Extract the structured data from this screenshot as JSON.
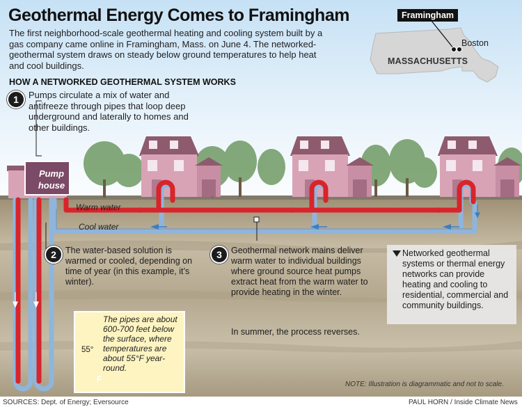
{
  "title": "Geothermal Energy Comes to Framingham",
  "intro": "The first neighborhood-scale geothermal heating and cooling system built by a gas company came online in Framingham, Mass. on June 4. The networked-geothermal system draws on steady below ground temperatures to help heat and cool buildings.",
  "section_heading": "HOW A NETWORKED GEOTHERMAL SYSTEM WORKS",
  "steps": [
    {
      "number": "1",
      "text": "Pumps circulate a mix of water and antifreeze through pipes that loop deep underground and laterally to homes and other buildings."
    },
    {
      "number": "2",
      "text": "The water-based solution is warmed or cooled, depending on time of year (in this example, it’s winter)."
    },
    {
      "number": "3",
      "text": "Geothermal network mains deliver warm water to individual buildings where ground source heat pumps extract heat from the warm water to provide heating in the winter."
    }
  ],
  "step3_extra": "In summer, the process reverses.",
  "sidebar_text": "Networked geothermal systems or thermal energy networks can provide heating and cooling to residential, commercial and community buildings.",
  "thermometer": {
    "text": "The pipes are about 600-700 feet below the surface, where temperatures are about 55°F year-round.",
    "temp_label": "55°",
    "unit": "F"
  },
  "pipes": {
    "warm": "Warm water",
    "cool": "Cool water"
  },
  "pump_house": "Pump house",
  "map": {
    "city": "Framingham",
    "other_city": "Boston",
    "state": "MASSACHUSETTS"
  },
  "note": "NOTE: Illustration is diagrammatic and not to scale.",
  "sources": "SOURCES: Dept. of Energy; Eversource",
  "credit": "PAUL HORN / Inside Climate News",
  "colors": {
    "warm_pipe": "#d8242a",
    "cool_pipe": "#8fb5dc",
    "house": "#d9a3b6",
    "sky": "#d9ecf8",
    "soil": "#b4a890"
  }
}
